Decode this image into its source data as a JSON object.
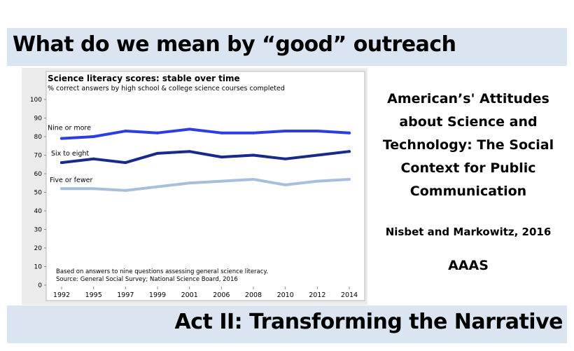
{
  "slide": {
    "title": "What do we mean by “good” outreach",
    "footer_title": "Act II: Transforming the Narrative"
  },
  "reference": {
    "title": "American’s' Attitudes about Science and Technology: The Social Context for Public Communication",
    "authors": "Nisbet and Markowitz, 2016",
    "publisher": "AAAS"
  },
  "colors": {
    "banner": "#dbe5f1",
    "nine_or_more": "#2a3ee8",
    "six_to_eight": "#1a2a8c",
    "five_or_fewer": "#a8bfdc"
  },
  "chart_data": {
    "type": "line",
    "title": "Science literacy scores: stable over time",
    "subtitle": "% correct answers by high school & college science courses completed",
    "xlabel": "",
    "ylabel": "",
    "categories": [
      "1992",
      "1995",
      "1997",
      "1999",
      "2001",
      "2006",
      "2008",
      "2010",
      "2012",
      "2014"
    ],
    "ylim": [
      0,
      100
    ],
    "yticks": [
      0,
      10,
      20,
      30,
      40,
      50,
      60,
      70,
      80,
      90,
      100
    ],
    "ytick_labels": [
      "0",
      "10",
      "20",
      "30",
      "40",
      "50",
      "60",
      "70",
      "80",
      "90",
      "100"
    ],
    "series": [
      {
        "name": "Nine or more",
        "values": [
          79,
          80,
          83,
          82,
          84,
          82,
          82,
          83,
          83,
          82
        ],
        "color": "#2a3ee8"
      },
      {
        "name": "Six to eight",
        "values": [
          66,
          68,
          66,
          71,
          72,
          69,
          70,
          68,
          70,
          72
        ],
        "color": "#1a2a8c"
      },
      {
        "name": "Five or fewer",
        "values": [
          52,
          52,
          51,
          53,
          55,
          56,
          57,
          54,
          56,
          57
        ],
        "color": "#a8bfdc"
      }
    ],
    "notes": [
      "Based on answers to nine questions assessing general science literacy.",
      "Source: General Social Survey; National Science Board, 2016"
    ]
  }
}
